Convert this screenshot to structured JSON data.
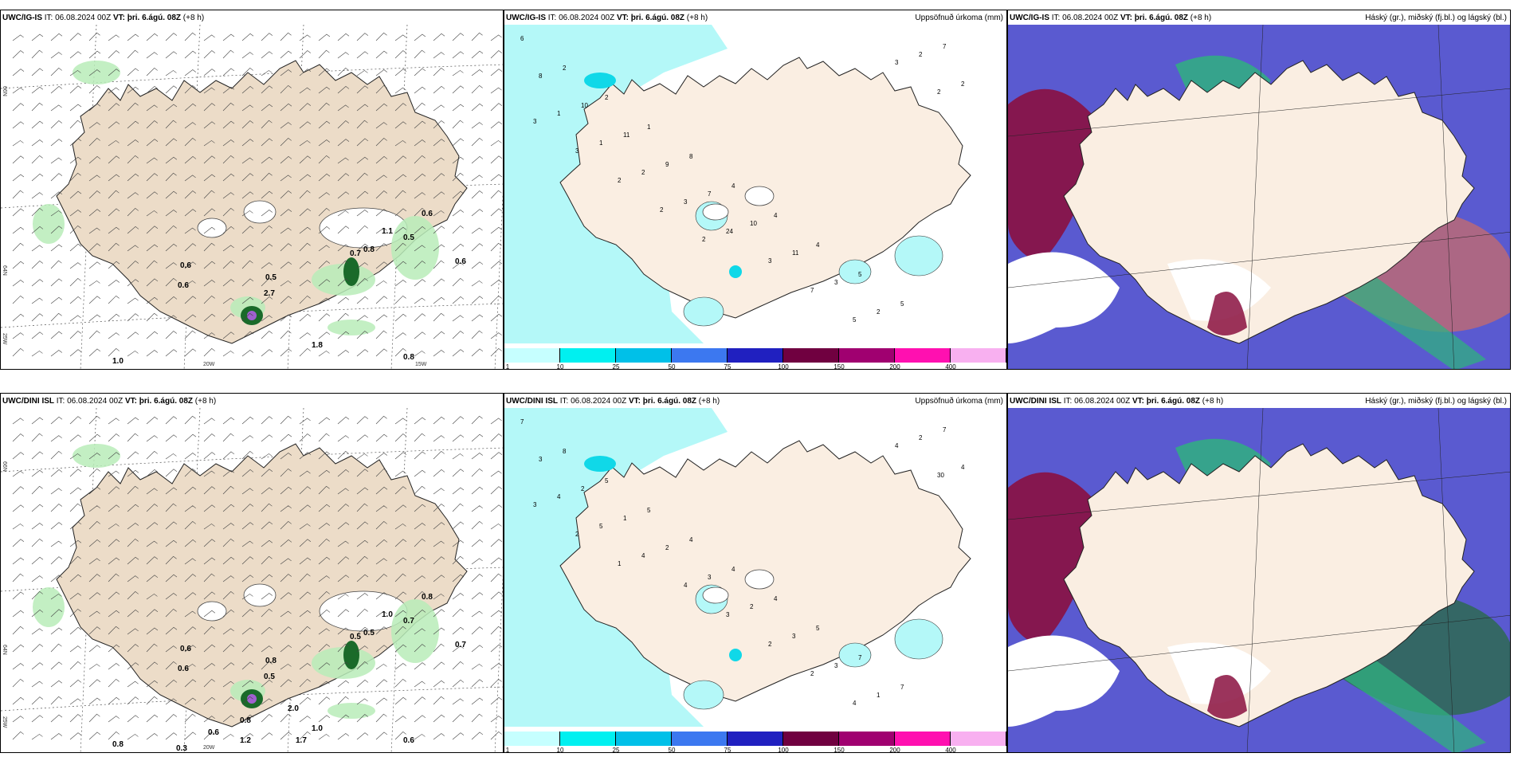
{
  "rows": [
    {
      "model": "UWC/IG-IS",
      "it_label": "IT:",
      "it_value": "06.08.2024 00Z",
      "vt_label": "VT:",
      "vt_value": "þri. 6.ágú. 08Z",
      "lead": "(+8 h)",
      "wind_values": [
        "0.6",
        "0.6",
        "0.5",
        "2.7",
        "0.7",
        "0.8",
        "0.5",
        "0.6",
        "1.1",
        "0.6",
        "0.8",
        "1.0",
        "1.8"
      ],
      "precip_values": [
        "6",
        "2",
        "2",
        "1",
        "8",
        "4",
        "4",
        "4",
        "5",
        "5",
        "7",
        "8",
        "10",
        "11",
        "9",
        "7",
        "10",
        "11",
        "3",
        "2",
        "2",
        "2",
        "1",
        "1",
        "2",
        "3",
        "24",
        "3",
        "7",
        "5",
        "3",
        "2",
        "3",
        "3",
        "2",
        "2",
        "2"
      ],
      "lon_labels": [
        "20W",
        "15W"
      ],
      "lat_labels": [
        "66N",
        "64N",
        "25W"
      ]
    },
    {
      "model": "UWC/DINI ISL",
      "it_label": "IT:",
      "it_value": "06.08.2024 00Z",
      "vt_label": "VT:",
      "vt_value": "þri. 6.ágú. 08Z",
      "lead": "(+8 h)",
      "wind_values": [
        "0.6",
        "0.6",
        "0.8",
        "0.5",
        "0.5",
        "0.5",
        "0.7",
        "0.8",
        "1.0",
        "0.7",
        "0.6",
        "0.8",
        "1.0",
        "1.7",
        "1.2",
        "2.0",
        "0.6",
        "0.3",
        "0.8"
      ],
      "precip_values": [
        "7",
        "8",
        "5",
        "5",
        "4",
        "4",
        "4",
        "5",
        "7",
        "7",
        "7",
        "3",
        "2",
        "1",
        "2",
        "3",
        "2",
        "3",
        "3",
        "1",
        "2",
        "4",
        "4",
        "5",
        "4",
        "4",
        "3",
        "2",
        "2",
        "4",
        "4",
        "30",
        "3",
        "2",
        "1"
      ],
      "lon_labels": [
        "20W"
      ],
      "lat_labels": [
        "66N",
        "64N",
        "25W"
      ]
    }
  ],
  "precip_title": "Uppsöfnuð úrkoma (mm)",
  "cloud_title": "Háský (gr.), miðský (fj.bl.) og lágský (bl.)",
  "colorbar": {
    "ticks": [
      "1",
      "10",
      "25",
      "50",
      "75",
      "100",
      "150",
      "200",
      "400"
    ],
    "colors": [
      "#c6ffff",
      "#00f0f0",
      "#00c0e8",
      "#3c78f0",
      "#2020c0",
      "#700040",
      "#a00070",
      "#ff10b0",
      "#f8b0f0"
    ]
  },
  "colors": {
    "land": "#ecdcc8",
    "precip_land": "#faeee2",
    "light_precip": "#b4f8f8",
    "cloud_high": "#5a5ad0",
    "cloud_mid": "#8a1040",
    "cloud_low": "#30b080"
  }
}
